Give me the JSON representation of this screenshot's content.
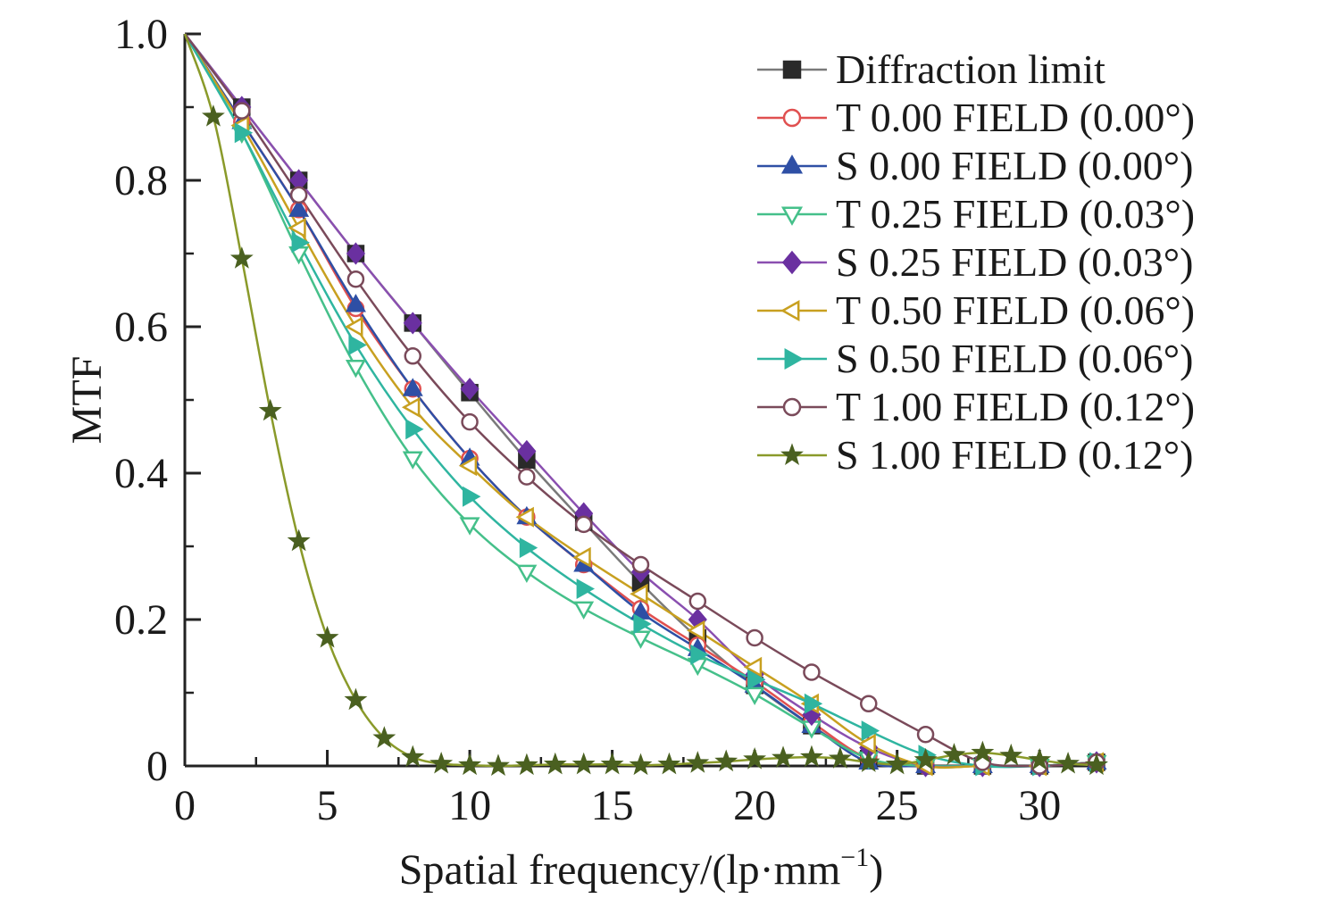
{
  "chart_data": {
    "type": "line",
    "xlabel": "Spatial frequency/(lp·mm",
    "xlabel_sup": "−1",
    "xlabel_close": ")",
    "ylabel": "MTF",
    "xlim": [
      0,
      32
    ],
    "ylim": [
      0,
      1.0
    ],
    "xticks": [
      0,
      5,
      10,
      15,
      20,
      25,
      30
    ],
    "xtick_labels": [
      "0",
      "5",
      "10",
      "15",
      "20",
      "25",
      "30"
    ],
    "yticks": [
      0,
      0.2,
      0.4,
      0.6,
      0.8,
      1.0
    ],
    "ytick_labels": [
      "0",
      "0.2",
      "0.4",
      "0.6",
      "0.8",
      "1.0"
    ],
    "grid": false,
    "legend_position": "top-right",
    "series": [
      {
        "name": "Diffraction limit",
        "color": "#7a7a7a",
        "marker_color": "#2a2a2a",
        "marker": "square",
        "filled": true,
        "x": [
          0,
          2,
          4,
          6,
          8,
          10,
          12,
          14,
          16,
          18,
          20,
          22,
          24,
          26,
          28,
          30,
          32
        ],
        "y": [
          1.0,
          0.9,
          0.8,
          0.7,
          0.605,
          0.51,
          0.418,
          0.333,
          0.25,
          0.175,
          0.11,
          0.055,
          0.01,
          0.0,
          0.0,
          0.0,
          0.005
        ]
      },
      {
        "name": "T 0.00 FIELD (0.00°)",
        "color": "#e05050",
        "marker_color": "#e05050",
        "marker": "circle",
        "filled": false,
        "x": [
          0,
          2,
          4,
          6,
          8,
          10,
          12,
          14,
          16,
          18,
          20,
          22,
          24,
          26,
          28,
          30,
          32
        ],
        "y": [
          1.0,
          0.88,
          0.76,
          0.625,
          0.515,
          0.42,
          0.34,
          0.275,
          0.215,
          0.165,
          0.115,
          0.06,
          0.01,
          0.0,
          0.0,
          0.0,
          0.005
        ]
      },
      {
        "name": "S 0.00 FIELD (0.00°)",
        "color": "#2e4fa5",
        "marker_color": "#2e4fa5",
        "marker": "triangle-up",
        "filled": true,
        "x": [
          0,
          2,
          4,
          6,
          8,
          10,
          12,
          14,
          16,
          18,
          20,
          22,
          24,
          26,
          28,
          30,
          32
        ],
        "y": [
          1.0,
          0.88,
          0.76,
          0.63,
          0.515,
          0.42,
          0.34,
          0.275,
          0.21,
          0.16,
          0.11,
          0.055,
          0.005,
          0.0,
          0.0,
          0.0,
          0.005
        ]
      },
      {
        "name": "T 0.25 FIELD (0.03°)",
        "color": "#45c08a",
        "marker_color": "#45c08a",
        "marker": "triangle-down",
        "filled": false,
        "x": [
          0,
          2,
          4,
          6,
          8,
          10,
          12,
          14,
          16,
          18,
          20,
          22,
          24,
          26,
          28,
          30,
          32
        ],
        "y": [
          1.0,
          0.865,
          0.7,
          0.545,
          0.42,
          0.33,
          0.265,
          0.215,
          0.175,
          0.138,
          0.098,
          0.052,
          0.01,
          0.0,
          0.0,
          0.0,
          0.005
        ]
      },
      {
        "name": "S 0.25 FIELD (0.03°)",
        "color": "#8a4fb0",
        "marker_color": "#6a30a0",
        "marker": "diamond",
        "filled": true,
        "x": [
          0,
          2,
          4,
          6,
          8,
          10,
          12,
          14,
          16,
          18,
          20,
          22,
          24,
          26,
          28,
          30,
          32
        ],
        "y": [
          1.0,
          0.9,
          0.8,
          0.7,
          0.605,
          0.515,
          0.43,
          0.345,
          0.265,
          0.2,
          0.125,
          0.07,
          0.025,
          0.0,
          0.0,
          0.0,
          0.005
        ]
      },
      {
        "name": "T 0.50 FIELD (0.06°)",
        "color": "#c8a020",
        "marker_color": "#c8a020",
        "marker": "triangle-left",
        "filled": false,
        "x": [
          0,
          2,
          4,
          6,
          8,
          10,
          12,
          14,
          16,
          18,
          20,
          22,
          24,
          26,
          28,
          30,
          32
        ],
        "y": [
          1.0,
          0.875,
          0.735,
          0.6,
          0.49,
          0.41,
          0.34,
          0.285,
          0.235,
          0.185,
          0.135,
          0.085,
          0.03,
          0.0,
          0.0,
          0.0,
          0.005
        ]
      },
      {
        "name": "S 0.50 FIELD (0.06°)",
        "color": "#2fb5a0",
        "marker_color": "#2fb5a0",
        "marker": "triangle-right",
        "filled": true,
        "x": [
          0,
          2,
          4,
          6,
          8,
          10,
          12,
          14,
          16,
          18,
          20,
          22,
          24,
          26,
          28,
          30,
          32
        ],
        "y": [
          1.0,
          0.865,
          0.715,
          0.575,
          0.46,
          0.368,
          0.298,
          0.242,
          0.194,
          0.152,
          0.118,
          0.085,
          0.048,
          0.015,
          0.0,
          0.0,
          0.005
        ]
      },
      {
        "name": "T 1.00 FIELD (0.12°)",
        "color": "#7a4a5a",
        "marker_color": "#7a4a5a",
        "marker": "circle",
        "filled": false,
        "x": [
          0,
          2,
          4,
          6,
          8,
          10,
          12,
          14,
          16,
          18,
          20,
          22,
          24,
          26,
          28,
          30,
          32
        ],
        "y": [
          1.0,
          0.895,
          0.78,
          0.665,
          0.56,
          0.47,
          0.395,
          0.33,
          0.275,
          0.225,
          0.175,
          0.128,
          0.085,
          0.043,
          0.005,
          0.0,
          0.005
        ]
      },
      {
        "name": "S 1.00 FIELD (0.12°)",
        "color": "#8a9a2a",
        "marker_color": "#4a6020",
        "marker": "star",
        "filled": true,
        "x": [
          0,
          1,
          2,
          3,
          4,
          5,
          6,
          7,
          8,
          9,
          10,
          11,
          12,
          13,
          14,
          15,
          16,
          17,
          18,
          19,
          20,
          21,
          22,
          23,
          24,
          25,
          26,
          27,
          28,
          29,
          30,
          31,
          32
        ],
        "y": [
          1.0,
          0.887,
          0.693,
          0.485,
          0.307,
          0.175,
          0.09,
          0.038,
          0.012,
          0.003,
          0.001,
          0.0,
          0.001,
          0.002,
          0.002,
          0.002,
          0.001,
          0.002,
          0.004,
          0.006,
          0.009,
          0.011,
          0.012,
          0.01,
          0.005,
          0.002,
          0.008,
          0.015,
          0.018,
          0.014,
          0.008,
          0.003,
          0.001
        ]
      }
    ]
  }
}
